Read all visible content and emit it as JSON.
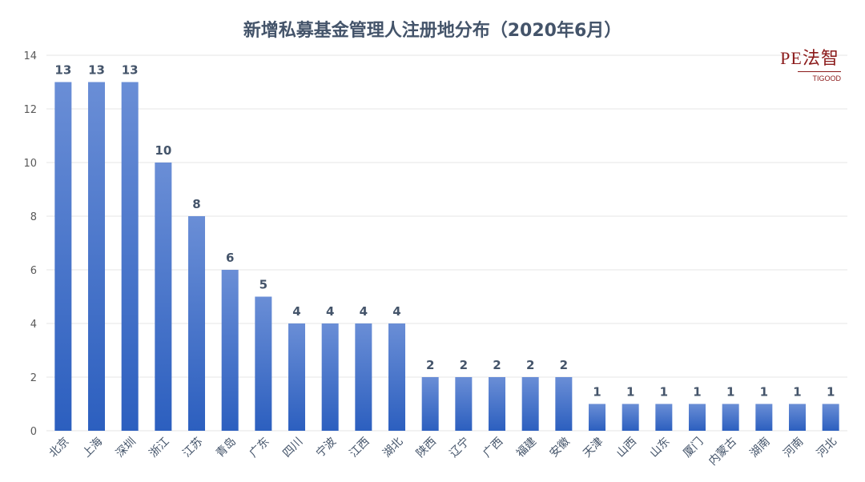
{
  "chart_data": {
    "type": "bar",
    "title": "新增私募基金管理人注册地分布（2020年6月）",
    "xlabel": "",
    "ylabel": "",
    "ylim": [
      0,
      14
    ],
    "yticks": [
      0,
      2,
      4,
      6,
      8,
      10,
      12,
      14
    ],
    "grid": true,
    "categories": [
      "北京",
      "上海",
      "深圳",
      "浙江",
      "江苏",
      "青岛",
      "广东",
      "四川",
      "宁波",
      "江西",
      "湖北",
      "陕西",
      "辽宁",
      "广西",
      "福建",
      "安徽",
      "天津",
      "山西",
      "山东",
      "厦门",
      "内蒙古",
      "湖南",
      "河南",
      "河北"
    ],
    "values": [
      13,
      13,
      13,
      10,
      8,
      6,
      5,
      4,
      4,
      4,
      4,
      2,
      2,
      2,
      2,
      2,
      1,
      1,
      1,
      1,
      1,
      1,
      1,
      1
    ],
    "colors": {
      "bar_top": "#6a8ed6",
      "bar_bottom": "#2c5fbf",
      "label": "#44546a",
      "grid": "#e6e6e6"
    }
  },
  "logo": {
    "main": "PE法智",
    "sub": "TIGOOD"
  }
}
